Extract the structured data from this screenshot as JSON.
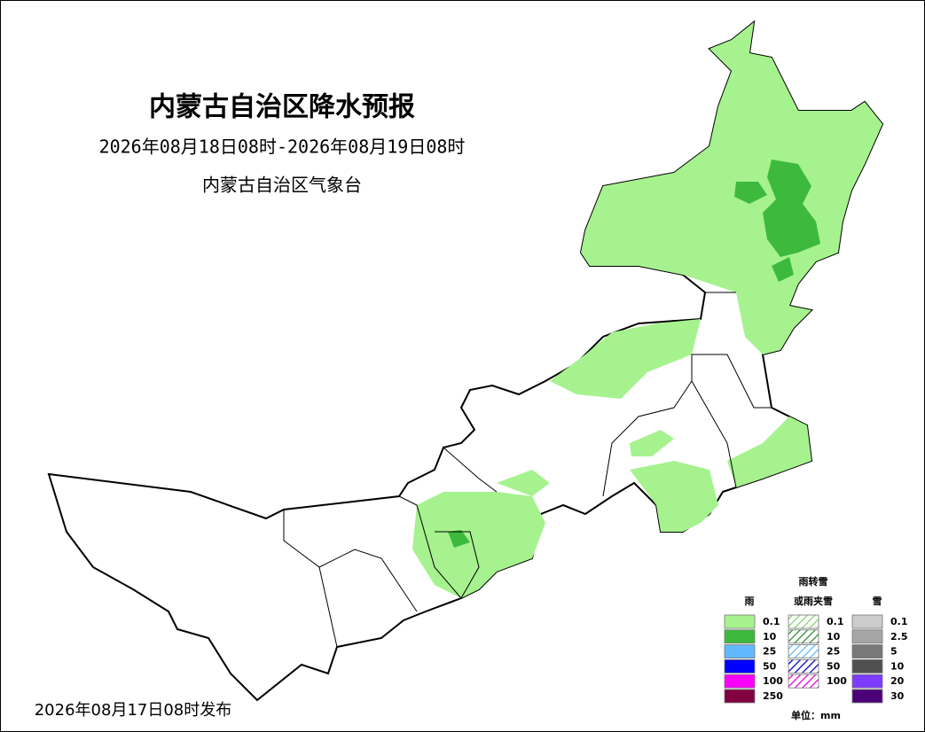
{
  "header": {
    "title": "内蒙古自治区降水预报",
    "period": "2026年08月18日08时-2026年08月19日08时",
    "issuer": "内蒙古自治区气象台"
  },
  "footer": {
    "issued": "2026年08月17日08时发布"
  },
  "legend": {
    "unit": "单位：mm",
    "groups": [
      {
        "title": "雨",
        "style": "solid",
        "items": [
          {
            "label": "0.1",
            "color": "#a6f28f"
          },
          {
            "label": "10",
            "color": "#3dba3d"
          },
          {
            "label": "25",
            "color": "#61b8ff"
          },
          {
            "label": "50",
            "color": "#0000ff"
          },
          {
            "label": "100",
            "color": "#fa00fa"
          },
          {
            "label": "250",
            "color": "#800040"
          }
        ]
      },
      {
        "title_top": "雨转雪",
        "title": "或雨夹雪",
        "style": "hatch",
        "items": [
          {
            "label": "0.1",
            "color": "#7fd36a"
          },
          {
            "label": "10",
            "color": "#2e8b2e"
          },
          {
            "label": "25",
            "color": "#61b8ff"
          },
          {
            "label": "50",
            "color": "#0000cc"
          },
          {
            "label": "100",
            "color": "#e000e0"
          }
        ]
      },
      {
        "title": "雪",
        "style": "solid",
        "items": [
          {
            "label": "0.1",
            "color": "#cccccc"
          },
          {
            "label": "2.5",
            "color": "#a6a6a6"
          },
          {
            "label": "5",
            "color": "#787878"
          },
          {
            "label": "10",
            "color": "#505050"
          },
          {
            "label": "20",
            "color": "#7d3cff"
          },
          {
            "label": "30",
            "color": "#4b0078"
          }
        ]
      }
    ]
  }
}
